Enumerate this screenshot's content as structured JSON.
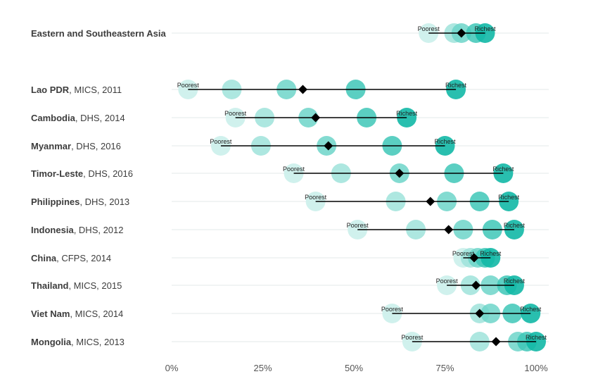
{
  "chart_data": {
    "type": "scatter",
    "xlim": [
      0,
      100
    ],
    "x_ticks": [
      0,
      25,
      50,
      75,
      100
    ],
    "x_tick_labels": [
      "0%",
      "25%",
      "50%",
      "75%",
      "100%"
    ],
    "quintile_labels": {
      "poorest": "Poorest",
      "richest": "Richest"
    },
    "grid": "horizontal",
    "colors": {
      "q1": "#cdf0ec",
      "q2": "#9fe3db",
      "q3": "#6dd5c9",
      "q4": "#3ec7b7",
      "q5": "#12b8a6",
      "average": "#000000",
      "line": "#000000",
      "grid": "#e3e8ea"
    },
    "rows": [
      {
        "country": "Eastern and Southeastern Asia",
        "source": "",
        "quintiles": [
          70.5,
          77.5,
          79.5,
          83.5,
          86
        ],
        "average": 79.5
      },
      {
        "country": "Lao PDR",
        "source": ", MICS, 2011",
        "quintiles": [
          4.5,
          16.5,
          31.5,
          50.5,
          78
        ],
        "average": 36
      },
      {
        "country": "Cambodia",
        "source": ", DHS, 2014",
        "quintiles": [
          17.5,
          25.5,
          37.5,
          53.5,
          64.5
        ],
        "average": 39.5
      },
      {
        "country": "Myanmar",
        "source": ", DHS, 2016",
        "quintiles": [
          13.5,
          24.5,
          42.5,
          60.5,
          75
        ],
        "average": 43
      },
      {
        "country": "Timor-Leste",
        "source": ", DHS, 2016",
        "quintiles": [
          33.5,
          46.5,
          62.5,
          77.5,
          91
        ],
        "average": 62.5
      },
      {
        "country": "Philippines",
        "source": ", DHS, 2013",
        "quintiles": [
          39.5,
          61.5,
          75.5,
          84.5,
          92.5
        ],
        "average": 71
      },
      {
        "country": "Indonesia",
        "source": ", DHS, 2012",
        "quintiles": [
          51,
          67,
          80,
          88,
          94
        ],
        "average": 76
      },
      {
        "country": "China",
        "source": ", CFPS, 2014",
        "quintiles": [
          80,
          82,
          84,
          86,
          87.5
        ],
        "average": 83
      },
      {
        "country": "Thailand",
        "source": ", MICS, 2015",
        "quintiles": [
          75.5,
          82,
          87.5,
          92,
          94
        ],
        "average": 83.5
      },
      {
        "country": "Viet Nam",
        "source": ", MICS, 2014",
        "quintiles": [
          60.5,
          84.5,
          87.5,
          93.5,
          98.5
        ],
        "average": 84.5
      },
      {
        "country": "Mongolia",
        "source": ", MICS, 2013",
        "quintiles": [
          66,
          84.5,
          95,
          97.5,
          100
        ],
        "average": 89
      }
    ]
  }
}
